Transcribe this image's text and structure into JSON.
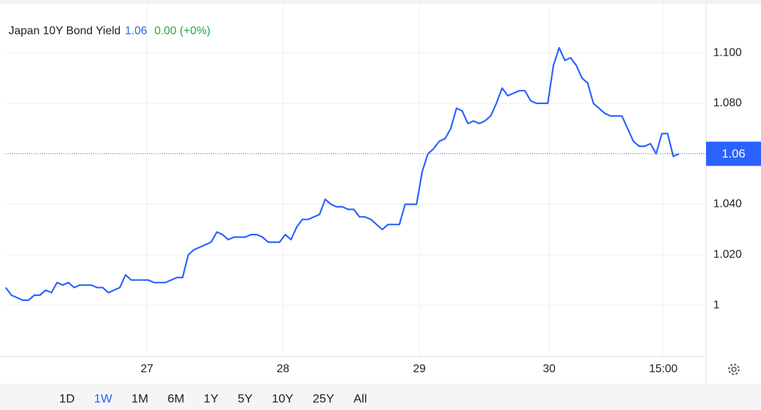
{
  "chart_data": {
    "type": "line",
    "title": "Japan 10Y Bond Yield",
    "price": 1.06,
    "change": "0.00 (+0%)",
    "x": [
      0,
      1,
      2,
      3,
      4,
      5,
      6,
      7,
      8,
      9,
      10,
      11,
      12,
      13,
      14,
      15,
      16,
      17,
      18,
      19,
      20,
      21,
      22,
      23,
      24,
      25,
      26,
      27,
      28,
      29,
      30,
      31,
      32,
      33,
      34,
      35,
      36,
      37,
      38,
      39,
      40,
      41,
      42,
      43,
      44,
      45,
      46,
      47,
      48,
      49,
      50,
      51,
      52,
      53,
      54,
      55,
      56,
      57,
      58,
      59,
      60,
      61,
      62,
      63,
      64,
      65,
      66,
      67,
      68,
      69,
      70,
      71,
      72,
      73,
      74,
      75,
      76,
      77,
      78,
      79,
      80,
      81,
      82,
      83,
      84,
      85,
      86,
      87,
      88,
      89,
      90,
      91,
      92,
      93,
      94,
      95,
      96,
      97,
      98,
      99,
      100,
      101,
      102,
      103,
      104,
      105,
      106,
      107,
      108,
      109,
      110,
      111,
      112,
      113,
      114,
      115,
      116,
      117,
      118
    ],
    "series": [
      {
        "name": "Japan 10Y Bond Yield",
        "color": "#2962ff",
        "values": [
          1.007,
          1.004,
          1.003,
          1.002,
          1.002,
          1.004,
          1.004,
          1.006,
          1.005,
          1.009,
          1.008,
          1.009,
          1.007,
          1.008,
          1.008,
          1.008,
          1.007,
          1.007,
          1.005,
          1.006,
          1.007,
          1.012,
          1.01,
          1.01,
          1.01,
          1.01,
          1.009,
          1.009,
          1.009,
          1.01,
          1.011,
          1.011,
          1.02,
          1.022,
          1.023,
          1.024,
          1.025,
          1.029,
          1.028,
          1.026,
          1.027,
          1.027,
          1.027,
          1.028,
          1.028,
          1.027,
          1.025,
          1.025,
          1.025,
          1.028,
          1.026,
          1.031,
          1.034,
          1.034,
          1.035,
          1.036,
          1.042,
          1.04,
          1.039,
          1.039,
          1.038,
          1.038,
          1.035,
          1.035,
          1.034,
          1.032,
          1.03,
          1.032,
          1.032,
          1.032,
          1.04,
          1.04,
          1.04,
          1.053,
          1.06,
          1.062,
          1.065,
          1.066,
          1.07,
          1.078,
          1.077,
          1.072,
          1.073,
          1.072,
          1.073,
          1.075,
          1.08,
          1.086,
          1.083,
          1.084,
          1.085,
          1.085,
          1.081,
          1.08,
          1.08,
          1.08,
          1.095,
          1.102,
          1.097,
          1.098,
          1.095,
          1.09,
          1.088,
          1.08,
          1.078,
          1.076,
          1.075,
          1.075,
          1.075,
          1.07,
          1.065,
          1.063,
          1.063,
          1.064,
          1.06,
          1.068,
          1.068,
          1.059,
          1.06
        ]
      }
    ],
    "xlim": [
      0,
      122.75
    ],
    "xticks": [
      {
        "value": 24.75,
        "label": "27"
      },
      {
        "value": 48.6,
        "label": "28"
      },
      {
        "value": 72.5,
        "label": "29"
      },
      {
        "value": 95.25,
        "label": "30"
      },
      {
        "value": 115.25,
        "label": "15:00"
      }
    ],
    "ylim": [
      0.9797,
      1.1195
    ],
    "yticks": [
      1,
      {
        "value": 1.02,
        "label": "1.020"
      },
      {
        "value": 1.04,
        "label": "1.040"
      },
      {
        "value": 1.08,
        "label": "1.080"
      },
      {
        "value": 1.1,
        "label": "1.100"
      }
    ],
    "grid": true
  },
  "controls": {
    "ranges": [
      "1D",
      "1W",
      "1M",
      "6M",
      "1Y",
      "5Y",
      "10Y",
      "25Y",
      "All"
    ],
    "active": 1
  }
}
